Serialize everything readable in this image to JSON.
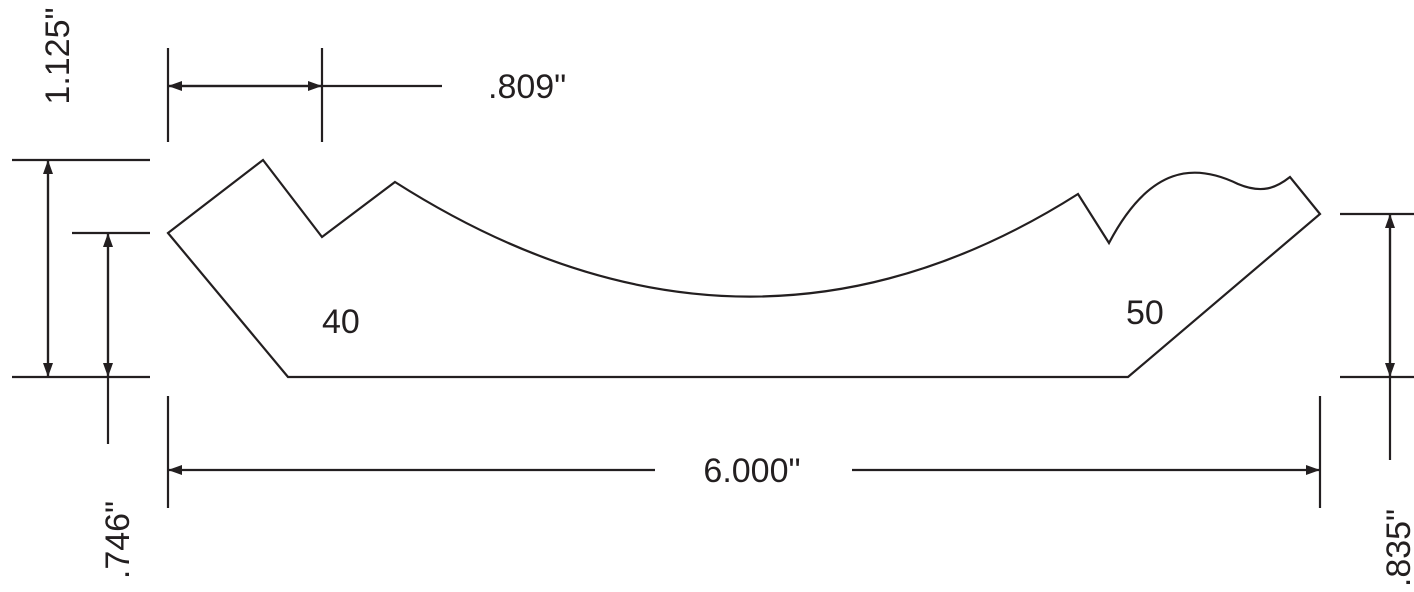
{
  "dimensions": {
    "top_width": ".809\"",
    "overall_height": "1.125\"",
    "left_height": ".746\"",
    "overall_length": "6.000\"",
    "right_height": ".835\""
  },
  "angles": {
    "left": "40",
    "right": "50"
  },
  "colors": {
    "ink": "#231f20",
    "background": "#ffffff"
  }
}
